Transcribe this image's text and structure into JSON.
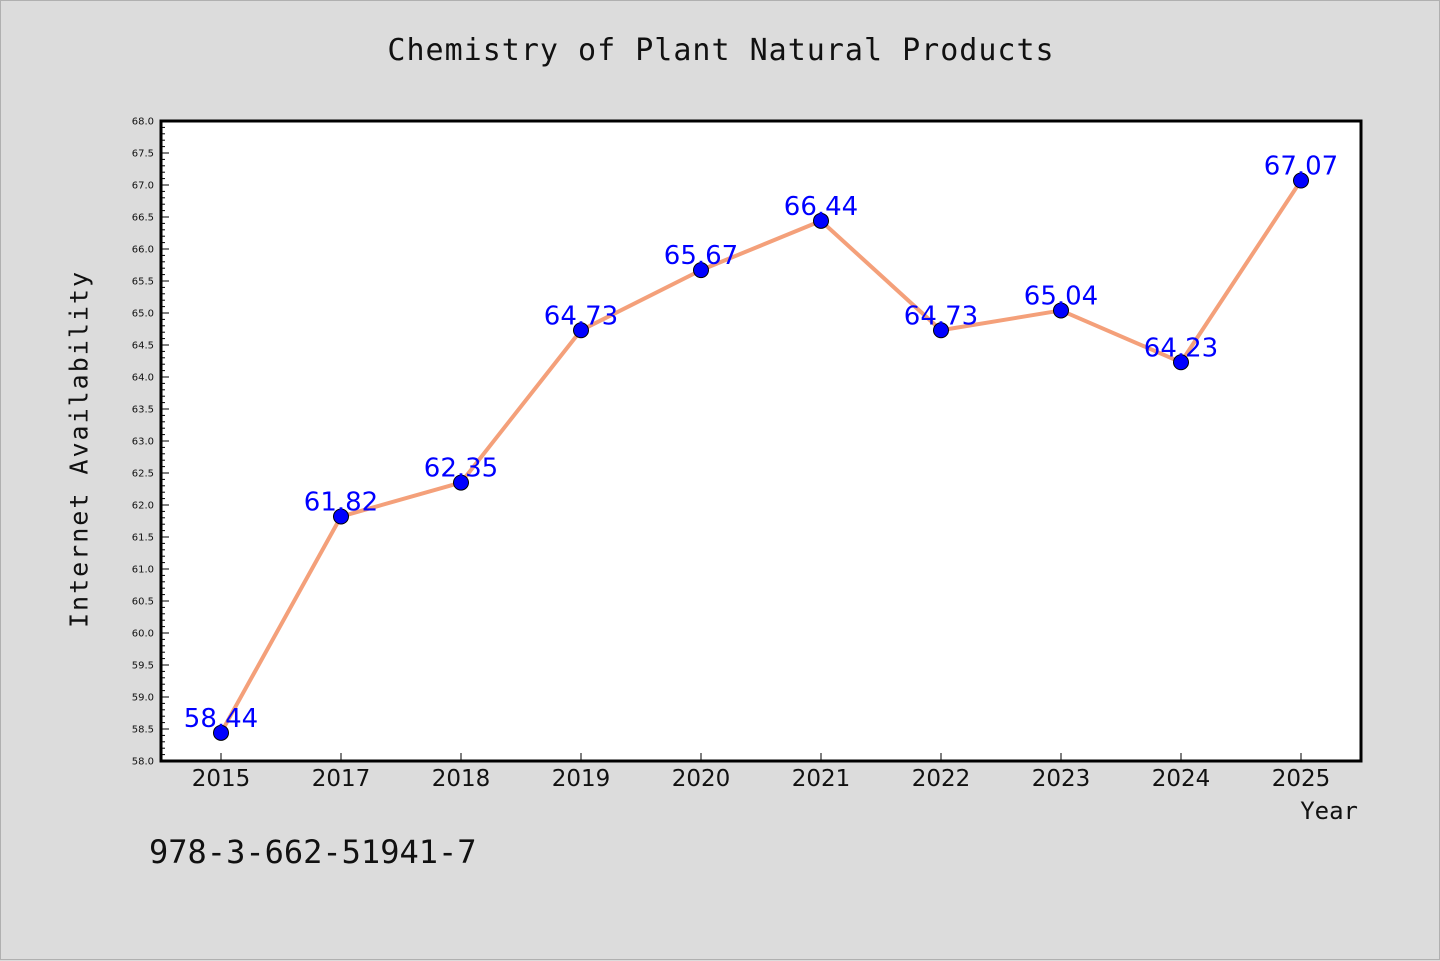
{
  "figure": {
    "title": "Chemistry of Plant Natural Products",
    "footer_code": "978-3-662-51941-7"
  },
  "chart_data": {
    "type": "line",
    "title": "Chemistry of Plant Natural Products",
    "xlabel": "Year",
    "ylabel": "Internet Availability",
    "categories": [
      "2015",
      "2017",
      "2018",
      "2019",
      "2020",
      "2021",
      "2022",
      "2023",
      "2024",
      "2025"
    ],
    "series": [
      {
        "values": [
          58.44,
          61.82,
          62.35,
          64.73,
          65.67,
          66.44,
          64.73,
          65.04,
          64.23,
          67.07
        ],
        "line_color": "#f4a07a",
        "marker_color": "#0000ff"
      }
    ],
    "data_labels": [
      "58.44",
      "61.82",
      "62.35",
      "64.73",
      "65.67",
      "66.44",
      "64.73",
      "65.04",
      "64.23",
      "67.07"
    ],
    "ylim": [
      58.0,
      68.0
    ],
    "yticks": [
      "58.0",
      "58.5",
      "59.0",
      "59.5",
      "60.0",
      "60.5",
      "61.0",
      "61.5",
      "62.0",
      "62.5",
      "63.0",
      "63.5",
      "64.0",
      "64.5",
      "65.0",
      "65.5",
      "66.0",
      "66.5",
      "67.0",
      "67.5",
      "68.0"
    ],
    "grid": false,
    "legend": "none",
    "background": "#dcdcdc",
    "plot_background": "#ffffff"
  }
}
